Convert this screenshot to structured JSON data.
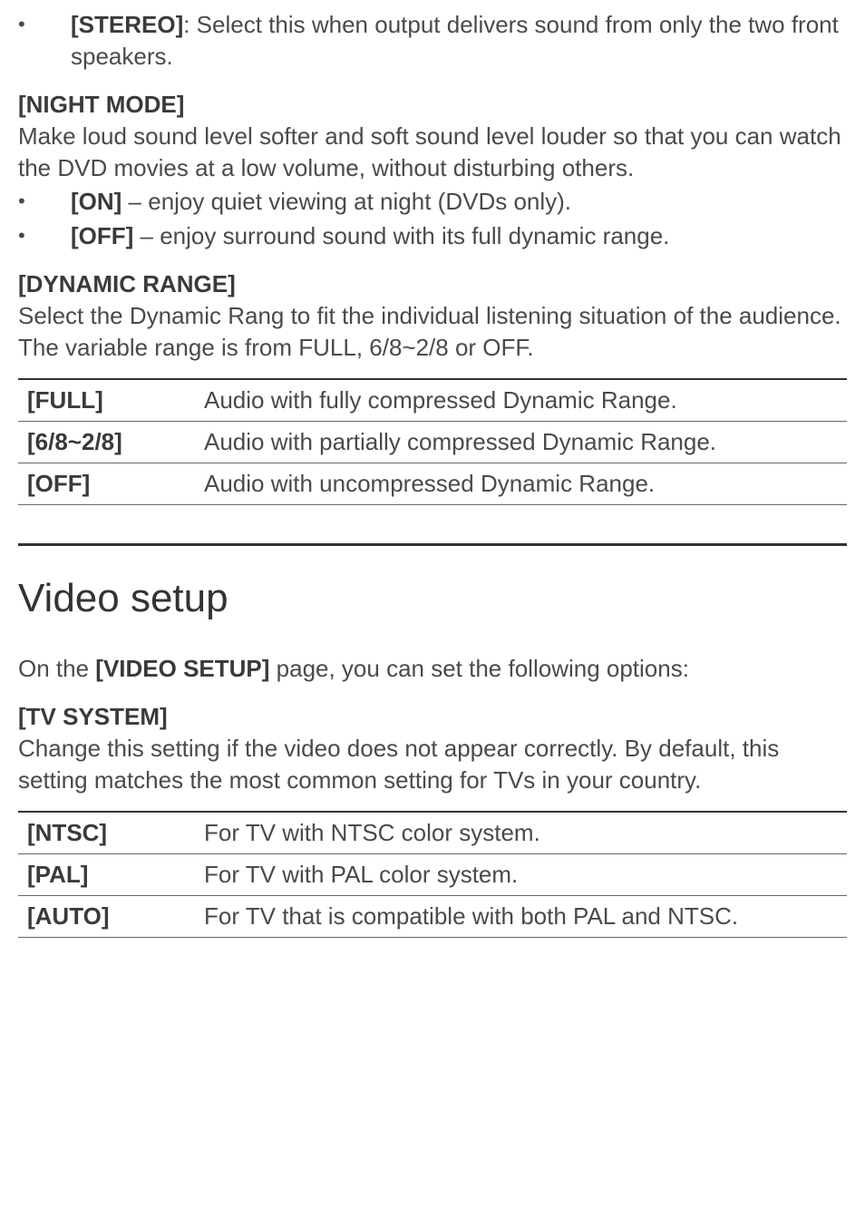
{
  "stereo_item": {
    "label": "[STEREO]",
    "desc": ": Select this when output delivers sound from only the two front speakers."
  },
  "night_mode": {
    "heading": "[NIGHT MODE]",
    "body": "Make loud sound level softer and soft sound level louder so that you can watch the DVD movies at a low volume, without disturbing others.",
    "on_label": "[ON]",
    "on_desc": " – enjoy quiet viewing at night (DVDs only).",
    "off_label": "[OFF]",
    "off_desc": " – enjoy surround sound with its full dynamic range."
  },
  "dynamic_range": {
    "heading": "[DYNAMIC RANGE]",
    "body": "Select the Dynamic Rang to fit the individual listening situation of the audience. The variable range is from FULL, 6/8~2/8 or OFF.",
    "rows": [
      {
        "label": "[FULL]",
        "desc": "Audio with fully compressed Dynamic Range."
      },
      {
        "label": "[6/8~2/8]",
        "desc": "Audio with partially compressed Dynamic Range."
      },
      {
        "label": "[OFF]",
        "desc": "Audio with uncompressed Dynamic Range."
      }
    ]
  },
  "video_setup": {
    "heading": "Video setup",
    "intro_prefix": "On the ",
    "intro_bold": "[VIDEO SETUP]",
    "intro_suffix": " page, you can set the following options:"
  },
  "tv_system": {
    "heading": "[TV SYSTEM]",
    "body": "Change this setting if the video does not appear correctly. By default, this setting matches the most common setting for TVs in your country.",
    "rows": [
      {
        "label": "[NTSC]",
        "desc": "For TV with NTSC color system."
      },
      {
        "label": "[PAL]",
        "desc": "For TV with PAL color system."
      },
      {
        "label": "[AUTO]",
        "desc": "For TV that is compatible with both PAL and NTSC."
      }
    ]
  }
}
